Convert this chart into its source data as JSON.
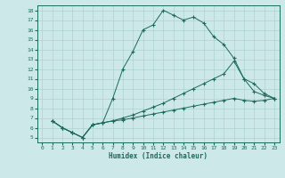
{
  "xlabel": "Humidex (Indice chaleur)",
  "bg_color": "#cce8e8",
  "line_color": "#1a6b5a",
  "xlim": [
    -0.5,
    23.5
  ],
  "ylim": [
    4.5,
    18.5
  ],
  "xticks": [
    0,
    1,
    2,
    3,
    4,
    5,
    6,
    7,
    8,
    9,
    10,
    11,
    12,
    13,
    14,
    15,
    16,
    17,
    18,
    19,
    20,
    21,
    22,
    23
  ],
  "yticks": [
    5,
    6,
    7,
    8,
    9,
    10,
    11,
    12,
    13,
    14,
    15,
    16,
    17,
    18
  ],
  "line1_x": [
    1,
    2,
    3,
    4,
    5,
    6,
    7,
    8,
    9,
    10,
    11,
    12,
    13,
    14,
    15,
    16,
    17,
    18,
    19,
    20,
    21,
    22,
    23
  ],
  "line1_y": [
    6.7,
    6.0,
    5.5,
    5.0,
    6.3,
    6.5,
    9.0,
    12.0,
    13.8,
    16.0,
    16.5,
    18.0,
    17.5,
    17.0,
    17.3,
    16.7,
    15.3,
    14.5,
    13.1,
    11.0,
    9.7,
    9.3,
    9.0
  ],
  "line2_x": [
    1,
    2,
    3,
    4,
    5,
    6,
    7,
    8,
    9,
    10,
    11,
    12,
    13,
    14,
    15,
    16,
    17,
    18,
    19,
    20,
    21,
    22,
    23
  ],
  "line2_y": [
    6.7,
    6.0,
    5.5,
    5.0,
    6.3,
    6.5,
    6.7,
    7.0,
    7.3,
    7.7,
    8.1,
    8.5,
    9.0,
    9.5,
    10.0,
    10.5,
    11.0,
    11.5,
    12.8,
    11.0,
    10.5,
    9.5,
    9.0
  ],
  "line3_x": [
    1,
    2,
    3,
    4,
    5,
    6,
    7,
    8,
    9,
    10,
    11,
    12,
    13,
    14,
    15,
    16,
    17,
    18,
    19,
    20,
    21,
    22,
    23
  ],
  "line3_y": [
    6.7,
    6.0,
    5.5,
    5.0,
    6.3,
    6.5,
    6.7,
    6.8,
    7.0,
    7.2,
    7.4,
    7.6,
    7.8,
    8.0,
    8.2,
    8.4,
    8.6,
    8.8,
    9.0,
    8.8,
    8.7,
    8.8,
    9.0
  ]
}
